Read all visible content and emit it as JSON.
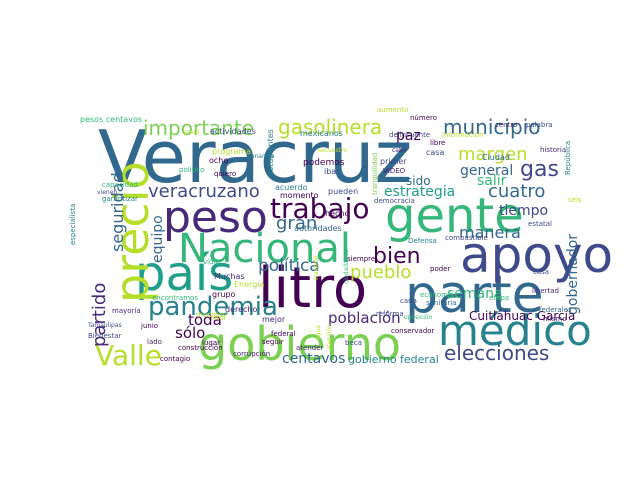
{
  "chart_data": {
    "type": "wordcloud",
    "words": [
      {
        "text": "Veracruz",
        "color": "#31688e"
      },
      {
        "text": "litro",
        "color": "#440154"
      },
      {
        "text": "gobierno",
        "color": "#7ad151"
      },
      {
        "text": "gente",
        "color": "#35b779"
      },
      {
        "text": "parte",
        "color": "#31688e"
      },
      {
        "text": "país",
        "color": "#1f9e89"
      },
      {
        "text": "precio",
        "color": "#b5de2b"
      },
      {
        "text": "apoyo",
        "color": "#3e4a89"
      },
      {
        "text": "peso",
        "color": "#482878"
      },
      {
        "text": "Nacional",
        "color": "#35b779"
      },
      {
        "text": "médico",
        "color": "#26828e"
      },
      {
        "text": "trabajo",
        "color": "#440154"
      },
      {
        "text": "Valle",
        "color": "#b5de2b"
      },
      {
        "text": "pandemia",
        "color": "#26828e"
      },
      {
        "text": "elecciones",
        "color": "#3e4a89"
      },
      {
        "text": "bien",
        "color": "#440154"
      },
      {
        "text": "gas",
        "color": "#3e4a89"
      },
      {
        "text": "importante",
        "color": "#7ad151"
      },
      {
        "text": "gasolinera",
        "color": "#b5de2b"
      },
      {
        "text": "municipio",
        "color": "#31688e"
      },
      {
        "text": "veracruzano",
        "color": "#3e4a89"
      },
      {
        "text": "cuatro",
        "color": "#31688e"
      },
      {
        "text": "pueblo",
        "color": "#b5de2b"
      },
      {
        "text": "margen",
        "color": "#b5de2b"
      },
      {
        "text": "gran",
        "color": "#31688e"
      },
      {
        "text": "partido",
        "color": "#482878"
      },
      {
        "text": "seguridad",
        "color": "#31688e"
      },
      {
        "text": "política",
        "color": "#31688e"
      },
      {
        "text": "estrategia",
        "color": "#1f9e89"
      },
      {
        "text": "manera",
        "color": "#31688e"
      },
      {
        "text": "semana",
        "color": "#35b779"
      },
      {
        "text": "equipo",
        "color": "#31688e"
      },
      {
        "text": "gobernador",
        "color": "#31688e"
      },
      {
        "text": "tiempo",
        "color": "#3e4a89"
      },
      {
        "text": "población",
        "color": "#482878"
      },
      {
        "text": "general",
        "color": "#31688e"
      },
      {
        "text": "salir",
        "color": "#35b779"
      },
      {
        "text": "toda",
        "color": "#440154"
      },
      {
        "text": "sólo",
        "color": "#440154"
      },
      {
        "text": "centavos",
        "color": "#31688e"
      },
      {
        "text": "gobierno federal",
        "color": "#26828e"
      },
      {
        "text": "paz",
        "color": "#440154"
      },
      {
        "text": "sido",
        "color": "#31688e"
      },
      {
        "text": "Cuitláhuac García",
        "color": "#440154"
      },
      {
        "text": "pesos centavos",
        "color": "#35b779"
      },
      {
        "text": "actividades",
        "color": "#3e4a89"
      },
      {
        "text": "mexicanos",
        "color": "#26828e"
      },
      {
        "text": "programa",
        "color": "#b5de2b"
      },
      {
        "text": "podemos",
        "color": "#440154"
      },
      {
        "text": "primer",
        "color": "#3e4a89"
      },
      {
        "text": "casa",
        "color": "#3e4a89"
      },
      {
        "text": "Ciudad",
        "color": "#31688e"
      },
      {
        "text": "estudiantes",
        "color": "#26828e"
      },
      {
        "text": "aumento",
        "color": "#b5de2b"
      },
      {
        "text": "centro",
        "color": "#482878"
      },
      {
        "text": "palabra",
        "color": "#3e4a89"
      },
      {
        "text": "número",
        "color": "#440154"
      },
      {
        "text": "delincuente",
        "color": "#3e4a89"
      },
      {
        "text": "información",
        "color": "#b5de2b"
      },
      {
        "text": "libre",
        "color": "#440154"
      },
      {
        "text": "historia",
        "color": "#482878"
      },
      {
        "text": "República",
        "color": "#26828e"
      },
      {
        "text": "ocho",
        "color": "#440154"
      },
      {
        "text": "quiero",
        "color": "#440154"
      },
      {
        "text": "político",
        "color": "#35b779"
      },
      {
        "text": "VIDEO",
        "color": "#482878"
      },
      {
        "text": "iba",
        "color": "#3e4a89"
      },
      {
        "text": "capacidad",
        "color": "#35b779"
      },
      {
        "text": "garantizar",
        "color": "#26828e"
      },
      {
        "text": "especialista",
        "color": "#26828e"
      },
      {
        "text": "acuerdo",
        "color": "#26828e"
      },
      {
        "text": "momento",
        "color": "#440154"
      },
      {
        "text": "pueden",
        "color": "#3e4a89"
      },
      {
        "text": "democracia",
        "color": "#3e4a89"
      },
      {
        "text": "seis",
        "color": "#b5de2b"
      },
      {
        "text": "hecho",
        "color": "#440154"
      },
      {
        "text": "autoridades",
        "color": "#31688e"
      },
      {
        "text": "estatal",
        "color": "#3e4a89"
      },
      {
        "text": "combustible",
        "color": "#3e4a89"
      },
      {
        "text": "Defensa",
        "color": "#26828e"
      },
      {
        "text": "vida",
        "color": "#35b779"
      },
      {
        "text": "Muchas",
        "color": "#482878"
      },
      {
        "text": "siempre",
        "color": "#440154"
      },
      {
        "text": "poder",
        "color": "#440154"
      },
      {
        "text": "cosa",
        "color": "#3e4a89"
      },
      {
        "text": "libertad",
        "color": "#482878"
      },
      {
        "text": "derecho",
        "color": "#482878"
      },
      {
        "text": "grupo",
        "color": "#440154"
      },
      {
        "text": "economía",
        "color": "#35b779"
      },
      {
        "text": "etapa",
        "color": "#35b779"
      },
      {
        "text": "encontramos",
        "color": "#35b779"
      },
      {
        "text": "Energía",
        "color": "#b5de2b"
      },
      {
        "text": "sanitaria",
        "color": "#31688e"
      },
      {
        "text": "federales",
        "color": "#31688e"
      },
      {
        "text": "cada",
        "color": "#3e4a89"
      },
      {
        "text": "mismo",
        "color": "#482878"
      },
      {
        "text": "mayoría",
        "color": "#482878"
      },
      {
        "text": "medidas",
        "color": "#b5de2b"
      },
      {
        "text": "mejor",
        "color": "#482878"
      },
      {
        "text": "reforma",
        "color": "#3e4a89"
      },
      {
        "text": "conservador",
        "color": "#440154"
      },
      {
        "text": "junio",
        "color": "#440154"
      },
      {
        "text": "lugar",
        "color": "#440154"
      },
      {
        "text": "construcción",
        "color": "#440154"
      },
      {
        "text": "lado",
        "color": "#482878"
      },
      {
        "text": "federal",
        "color": "#440154"
      },
      {
        "text": "seguir",
        "color": "#440154"
      },
      {
        "text": "atender",
        "color": "#482878"
      },
      {
        "text": "beca",
        "color": "#3e4a89"
      },
      {
        "text": "corrupción",
        "color": "#482878"
      },
      {
        "text": "contagio",
        "color": "#440154"
      },
      {
        "text": "Bienestar",
        "color": "#3e4a89"
      },
      {
        "text": "Tamaulipas",
        "color": "#3e4a89"
      },
      {
        "text": "vienen",
        "color": "#3e4a89"
      },
      {
        "text": "nivel",
        "color": "#b5de2b"
      },
      {
        "text": "oposición",
        "color": "#35b779"
      },
      {
        "text": "salud",
        "color": "#b5de2b"
      },
      {
        "text": "cabo",
        "color": "#482878"
      },
      {
        "text": "tranquilidad",
        "color": "#7ad151"
      },
      {
        "text": "secuestro",
        "color": "#b5de2b"
      },
      {
        "text": "atención",
        "color": "#b5de2b"
      },
      {
        "text": "agua",
        "color": "#b5de2b"
      },
      {
        "text": "ciudadanos",
        "color": "#35b779"
      },
      {
        "text": "trasladó",
        "color": "#b5de2b"
      },
      {
        "text": "ganancia",
        "color": "#26828e"
      }
    ]
  }
}
